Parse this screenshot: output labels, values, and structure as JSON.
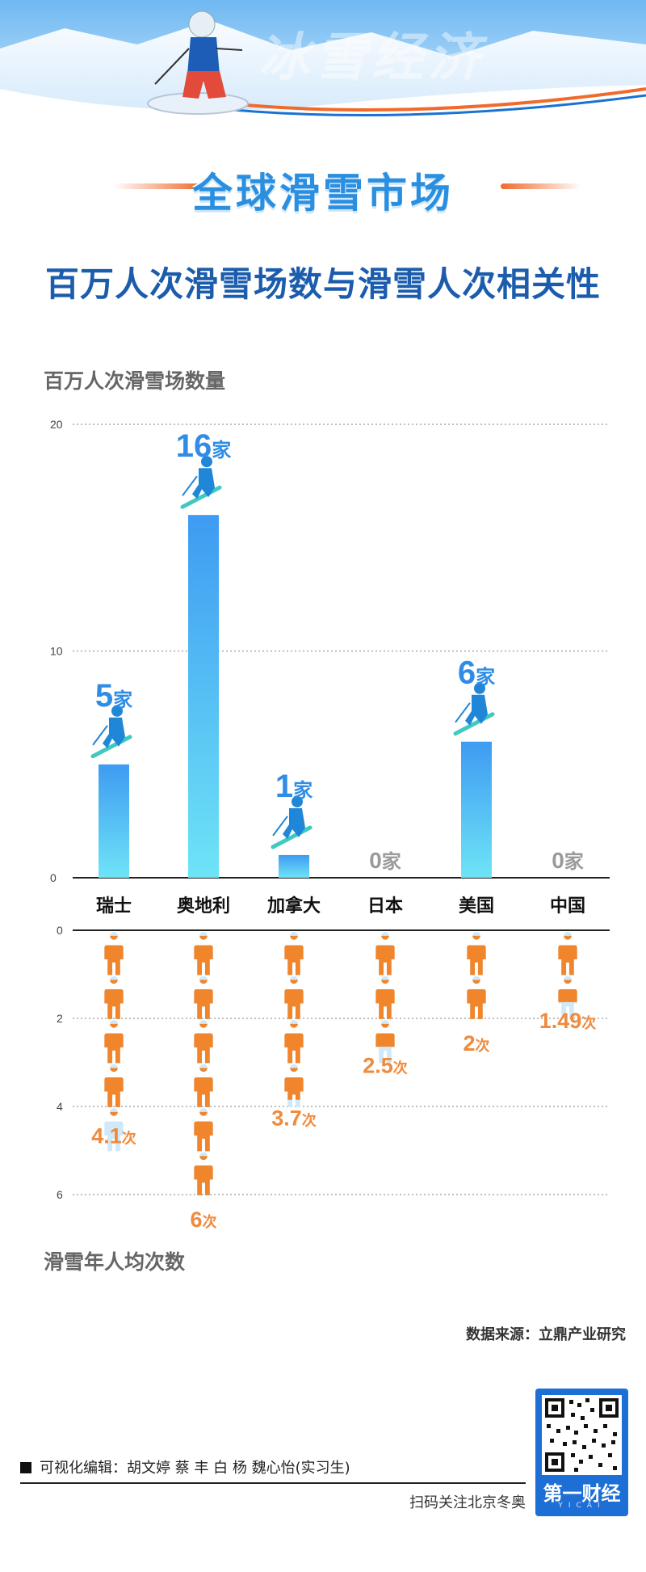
{
  "header": {
    "banner_text": "冰雪经济",
    "section_title": "全球滑雪市场"
  },
  "chart_data": {
    "type": "bar",
    "title": "百万人次滑雪场数与滑雪人次相关性",
    "categories": [
      "瑞士",
      "奥地利",
      "加拿大",
      "日本",
      "美国",
      "中国"
    ],
    "series": [
      {
        "name": "百万人次滑雪场数量",
        "values": [
          5,
          16,
          1,
          0,
          6,
          0
        ],
        "value_labels": [
          "5",
          "16",
          "1",
          "0",
          "6",
          "0"
        ],
        "unit": "家",
        "ylim": [
          0,
          20
        ],
        "yticks": [
          "0",
          "10",
          "20"
        ]
      },
      {
        "name": "滑雪年人均次数",
        "type": "pictogram",
        "values": [
          4.1,
          6,
          3.7,
          2.5,
          2,
          1.49
        ],
        "value_labels": [
          "4.1",
          "6",
          "3.7",
          "2.5",
          "2",
          "1.49"
        ],
        "unit": "次",
        "ylim": [
          0,
          6
        ],
        "yticks": [
          "0",
          "2",
          "4",
          "6"
        ]
      }
    ],
    "colors": {
      "bar_top": "#3e9bf2",
      "bar_bottom": "#6ee4f6",
      "bar_label": "#2f8de6",
      "zero_label": "#9a9a9a",
      "person_fill": "#f0852b",
      "person_empty": "#cfe9fb",
      "count_label": "#f08a3c",
      "skier": "#1f86d8",
      "ski": "#3fc9c0"
    },
    "grid": true
  },
  "source": "数据来源：立鼎产业研究",
  "credits": "可视化编辑：胡文婷  蔡 丰  白 杨  魏心怡(实习生)",
  "follow": "扫码关注北京冬奥",
  "brand": {
    "name": "第一财经",
    "sub": "YICAI"
  }
}
